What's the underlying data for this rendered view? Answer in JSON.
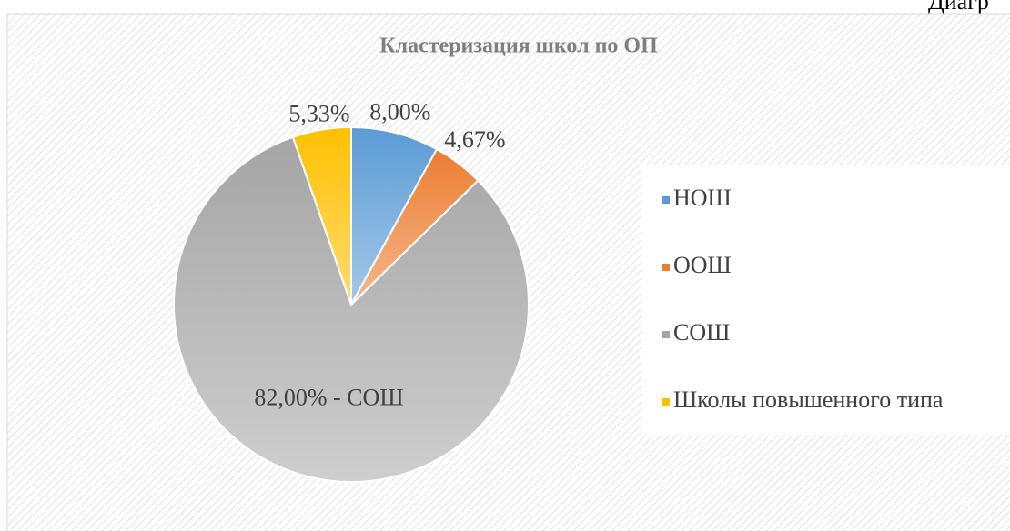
{
  "caption": "Диагр",
  "chart_data": {
    "type": "pie",
    "title": "Кластеризация школ по ОП",
    "categories": [
      "НОШ",
      "ООШ",
      "СОШ",
      "Школы повышенного типа"
    ],
    "values": [
      8,
      4.67,
      82,
      5.33
    ],
    "value_labels": [
      "8,00%",
      "4,67%",
      "82,00% - СОШ",
      "5,33%"
    ],
    "colors": [
      "#5b9bd5",
      "#ed7d31",
      "#a5a5a5",
      "#ffc000"
    ],
    "legend": "right"
  }
}
